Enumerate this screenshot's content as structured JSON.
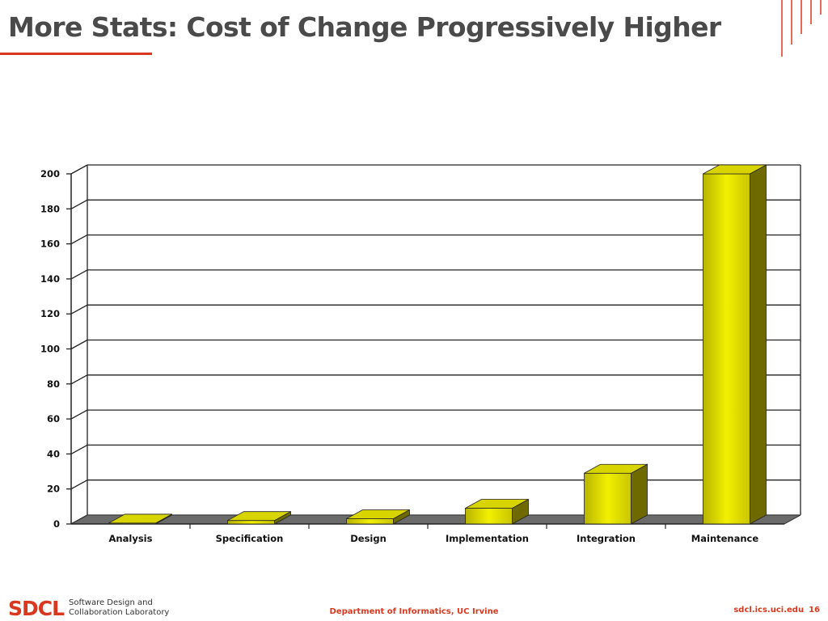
{
  "slide": {
    "title": "More Stats: Cost of Change Progressively Higher"
  },
  "footer": {
    "logo_mark": "SDCL",
    "logo_line1": "Software Design and",
    "logo_line2": "Collaboration Laboratory",
    "center": "Department of Informatics, UC Irvine",
    "site": "sdcl.ics.uci.edu",
    "page": "16"
  },
  "colors": {
    "accent": "#d9381e",
    "title": "#4a4a4a",
    "bar_front": "#f2f000",
    "bar_top": "#d8d400",
    "bar_side": "#6e6a00",
    "floor": "#6b6b6b"
  },
  "chart_data": {
    "type": "bar",
    "categories": [
      "Analysis",
      "Specification",
      "Design",
      "Implementation",
      "Integration",
      "Maintenance"
    ],
    "values": [
      0.5,
      2,
      3,
      9,
      29,
      200
    ],
    "title": "",
    "xlabel": "",
    "ylabel": "",
    "ylim": [
      0,
      200
    ],
    "yticks": [
      "0",
      "20",
      "40",
      "60",
      "80",
      "100",
      "120",
      "140",
      "160",
      "180",
      "200"
    ],
    "grid": true,
    "legend": "none",
    "style": "3d"
  }
}
